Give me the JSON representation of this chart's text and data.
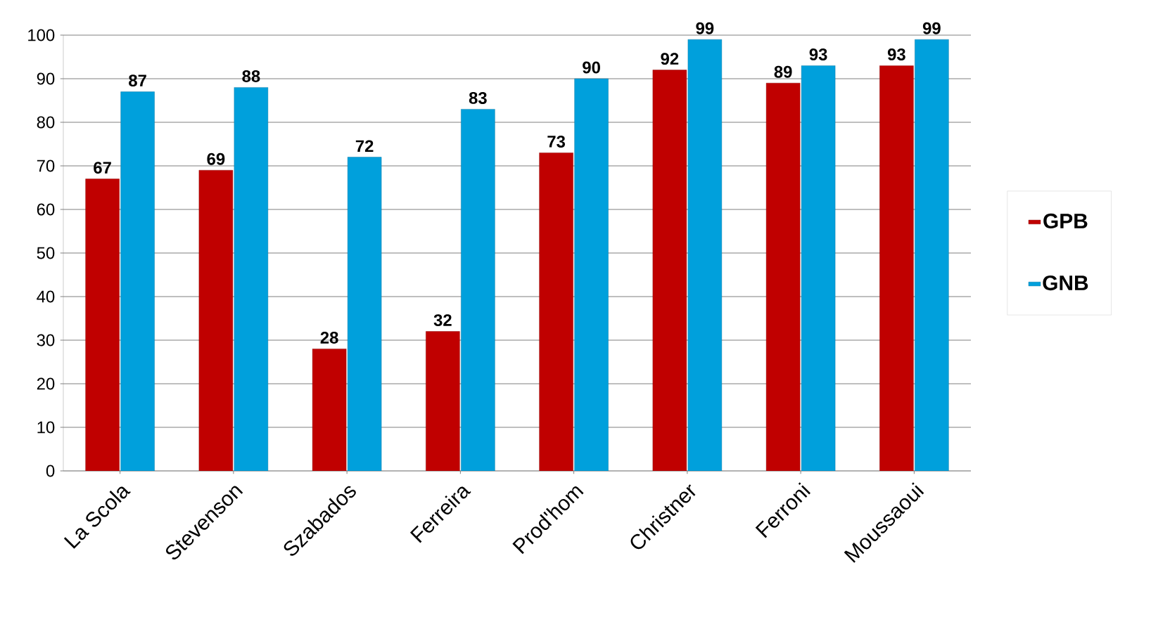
{
  "chart_data": {
    "type": "bar",
    "categories": [
      "La Scola",
      "Stevenson",
      "Szabados",
      "Ferreira",
      "Prod'hom",
      "Christner",
      "Ferroni",
      "Moussaoui"
    ],
    "series": [
      {
        "name": "GPB",
        "color": "#c00000",
        "values": [
          67,
          69,
          28,
          32,
          73,
          92,
          89,
          93
        ]
      },
      {
        "name": "GNB",
        "color": "#00a0dc",
        "values": [
          87,
          88,
          72,
          83,
          90,
          99,
          93,
          99
        ]
      }
    ],
    "ylim": [
      0,
      100
    ],
    "yticks": [
      0,
      10,
      20,
      30,
      40,
      50,
      60,
      70,
      80,
      90,
      100
    ],
    "grid": "y",
    "legend": "right",
    "data_labels": true
  }
}
